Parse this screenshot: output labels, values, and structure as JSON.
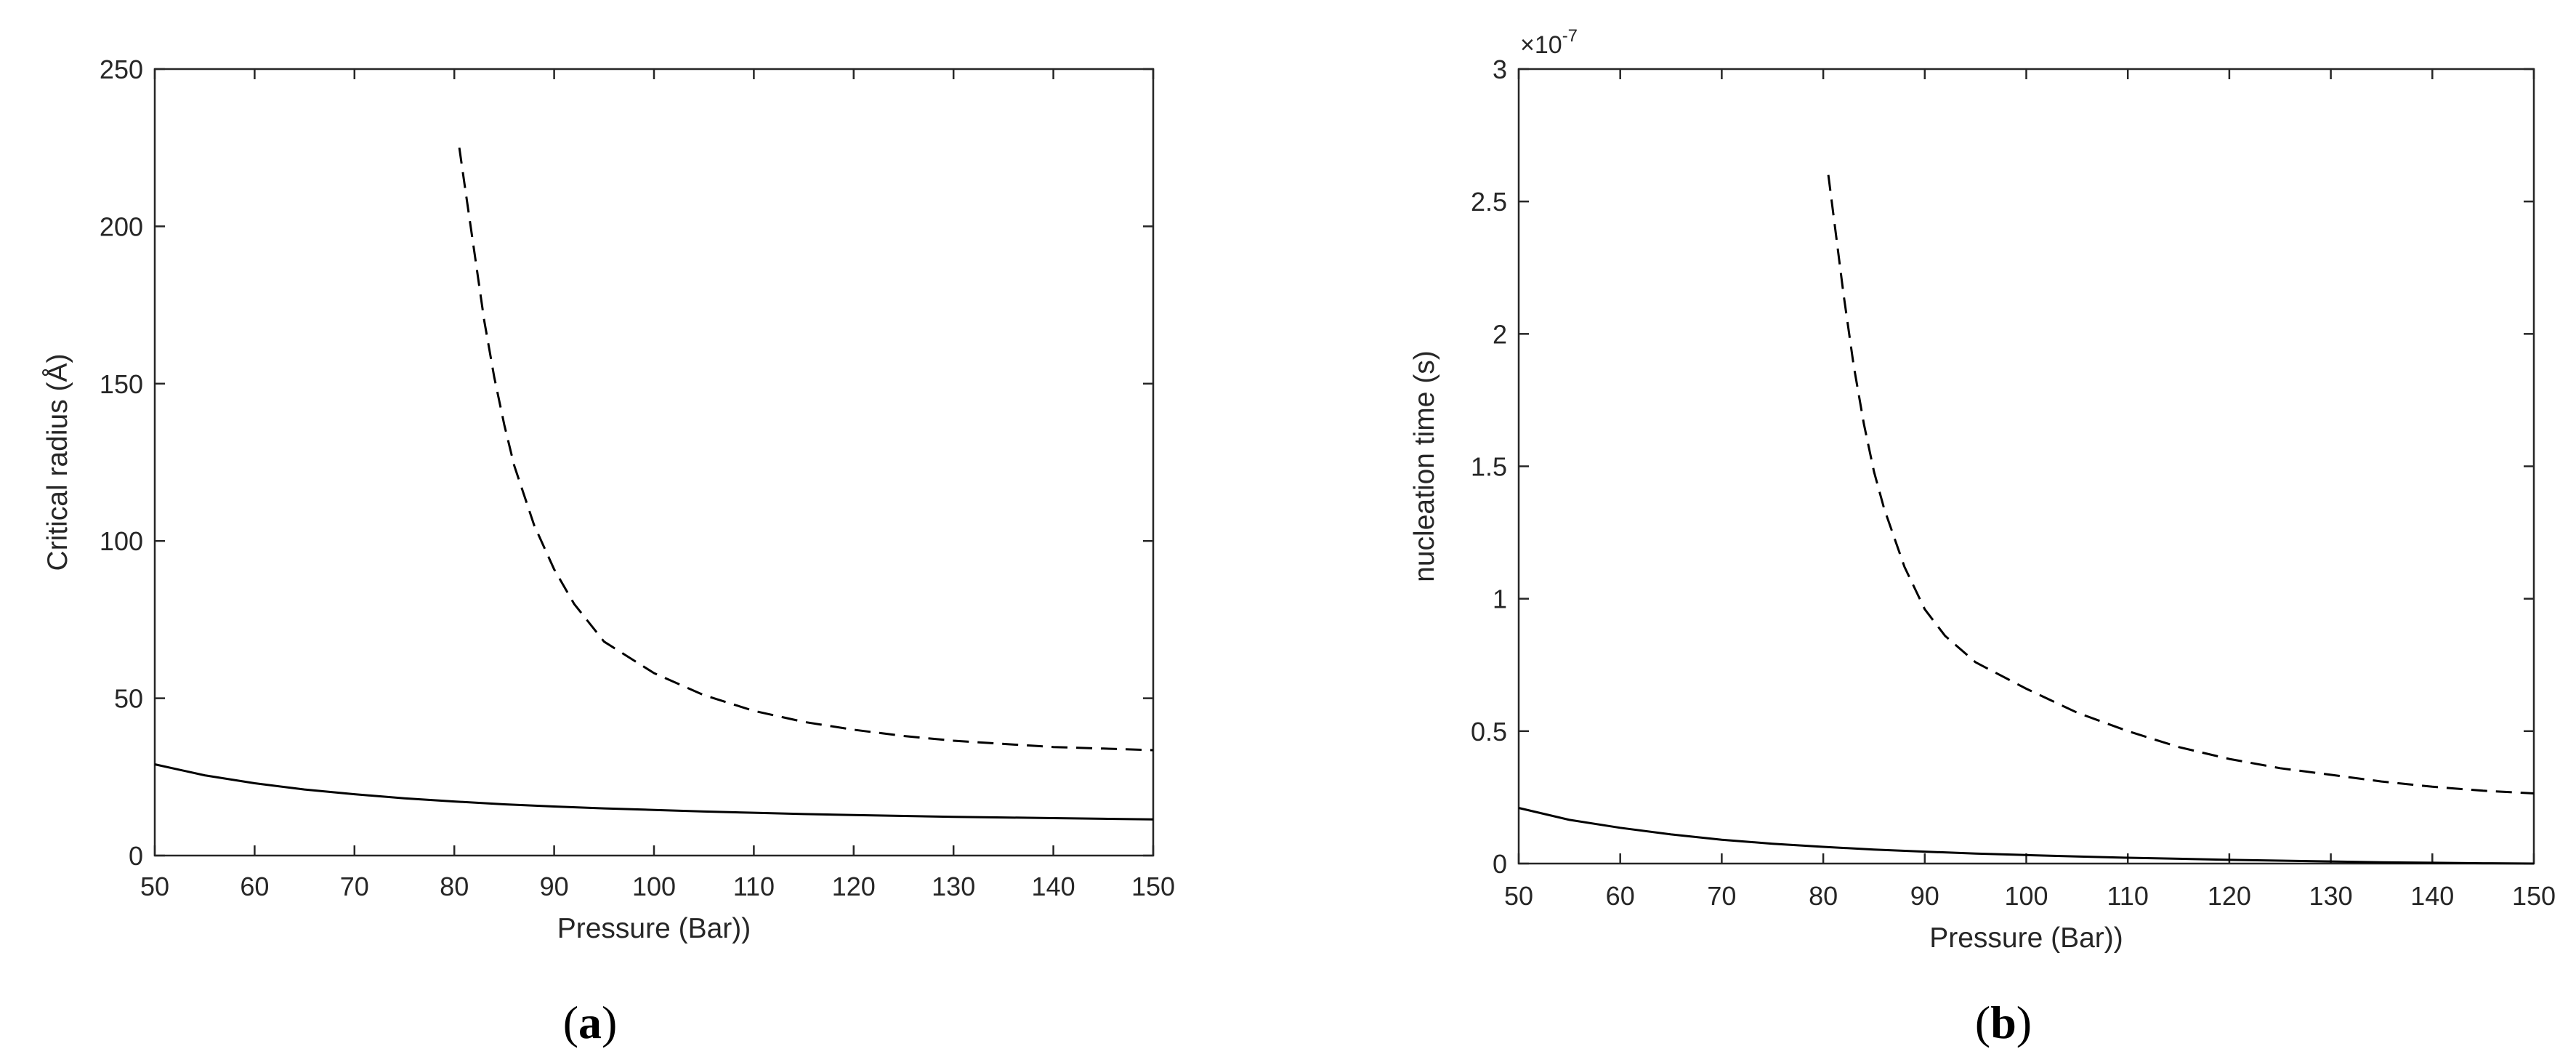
{
  "chart_data": [
    {
      "panel_label": "a",
      "type": "line",
      "xlabel": "Pressure (Bar))",
      "ylabel": "Critical radius (Å)",
      "xlim": [
        50,
        150
      ],
      "ylim": [
        0,
        250
      ],
      "xticks": [
        50,
        60,
        70,
        80,
        90,
        100,
        110,
        120,
        130,
        140,
        150
      ],
      "yticks": [
        0,
        50,
        100,
        150,
        200,
        250
      ],
      "grid": false,
      "series": [
        {
          "style": "solid",
          "x": [
            50,
            55,
            60,
            65,
            70,
            75,
            80,
            85,
            90,
            95,
            100,
            105,
            110,
            115,
            120,
            125,
            130,
            135,
            140,
            145,
            150
          ],
          "y": [
            29,
            25.5,
            23,
            21,
            19.5,
            18.2,
            17.2,
            16.3,
            15.6,
            15,
            14.5,
            14,
            13.6,
            13.2,
            12.9,
            12.6,
            12.3,
            12.1,
            11.9,
            11.7,
            11.5
          ]
        },
        {
          "style": "dashed",
          "x": [
            80.5,
            81,
            82,
            83,
            84,
            85,
            86,
            88,
            90,
            92,
            95,
            100,
            105,
            110,
            115,
            120,
            125,
            130,
            135,
            140,
            145,
            150
          ],
          "y": [
            225,
            214,
            192,
            170,
            152,
            137,
            124,
            105,
            91,
            80,
            68,
            58,
            51,
            46,
            42.5,
            40,
            38,
            36.5,
            35.5,
            34.5,
            34,
            33.5
          ]
        }
      ]
    },
    {
      "panel_label": "b",
      "type": "line",
      "xlabel": "Pressure (Bar))",
      "ylabel": "nucleation time (s)",
      "multiplier_base": "×10",
      "multiplier_exponent": "-7",
      "xlim": [
        50,
        150
      ],
      "ylim": [
        0,
        3
      ],
      "xticks": [
        50,
        60,
        70,
        80,
        90,
        100,
        110,
        120,
        130,
        140,
        150
      ],
      "yticks": [
        0,
        0.5,
        1,
        1.5,
        2,
        2.5,
        3
      ],
      "grid": false,
      "series": [
        {
          "style": "solid",
          "x": [
            50,
            55,
            60,
            65,
            70,
            75,
            80,
            85,
            90,
            95,
            100,
            105,
            110,
            115,
            120,
            125,
            130,
            135,
            140,
            145,
            150
          ],
          "y": [
            0.21,
            0.165,
            0.135,
            0.11,
            0.09,
            0.075,
            0.063,
            0.053,
            0.045,
            0.038,
            0.032,
            0.027,
            0.022,
            0.018,
            0.014,
            0.011,
            0.008,
            0.005,
            0.003,
            0.001,
            0
          ]
        },
        {
          "style": "dashed",
          "x": [
            80.5,
            81,
            82,
            83,
            84,
            85,
            86,
            88,
            90,
            92,
            95,
            100,
            105,
            110,
            115,
            120,
            125,
            130,
            135,
            140,
            145,
            150
          ],
          "y": [
            2.6,
            2.45,
            2.15,
            1.88,
            1.66,
            1.48,
            1.34,
            1.12,
            0.96,
            0.86,
            0.76,
            0.66,
            0.57,
            0.5,
            0.44,
            0.395,
            0.36,
            0.335,
            0.31,
            0.29,
            0.275,
            0.265
          ]
        }
      ]
    }
  ]
}
